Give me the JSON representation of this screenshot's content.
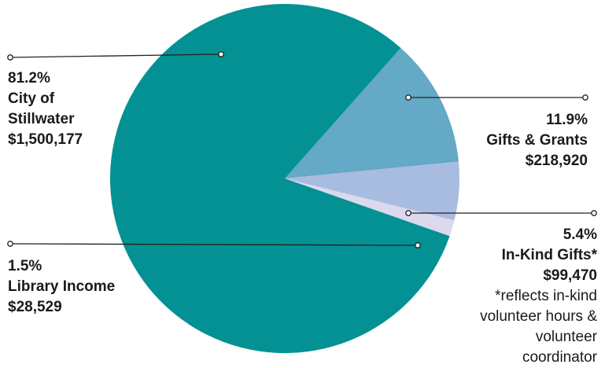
{
  "chart_data": {
    "type": "pie",
    "slices": [
      {
        "percent_label": "81.2%",
        "name": "City of Stillwater",
        "amount": "$1,500,177",
        "value": 81.2,
        "color": "#039193"
      },
      {
        "percent_label": "11.9%",
        "name": "Gifts & Grants",
        "amount": "$218,920",
        "value": 11.9,
        "color": "#64a9c5"
      },
      {
        "percent_label": "5.4%",
        "name": "In-Kind Gifts*",
        "amount": "$99,470",
        "value": 5.4,
        "color": "#a7bce0"
      },
      {
        "percent_label": "1.5%",
        "name": "Library Income",
        "amount": "$28,529",
        "value": 1.5,
        "color": "#dcd8ee"
      }
    ],
    "footnote": "*reflects in-kind volunteer hours & volunteer coordinator",
    "legend": "none"
  },
  "labels": {
    "city": {
      "pct": "81.2%",
      "name_line1": "City of",
      "name_line2": "Stillwater",
      "amount": "$1,500,177"
    },
    "gifts": {
      "pct": "11.9%",
      "name": "Gifts & Grants",
      "amount": "$218,920"
    },
    "inkind": {
      "pct": "5.4%",
      "name": "In-Kind Gifts*",
      "amount": "$99,470",
      "note_line1": "*reflects in-kind",
      "note_line2": "volunteer hours &",
      "note_line3": "volunteer",
      "note_line4": "coordinator"
    },
    "library": {
      "pct": "1.5%",
      "name": "Library Income",
      "amount": "$28,529"
    }
  }
}
